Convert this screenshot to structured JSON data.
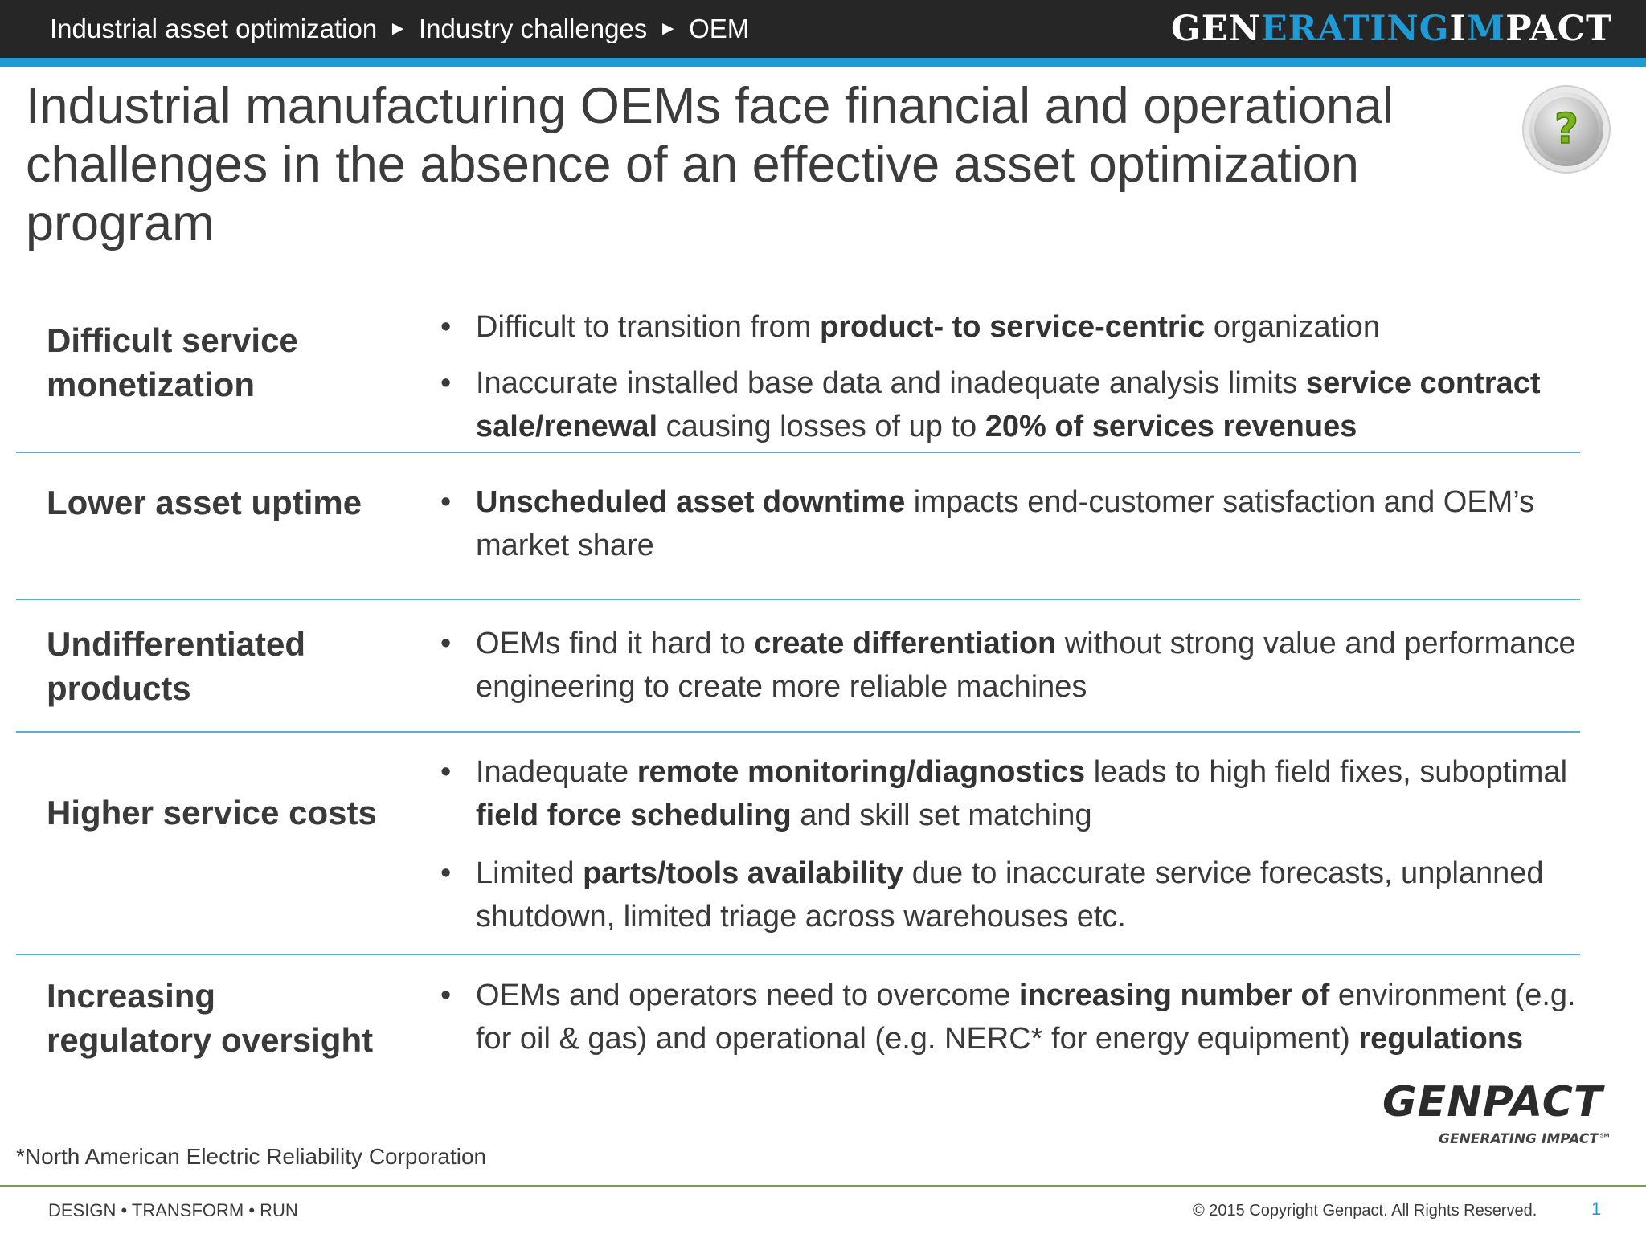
{
  "header": {
    "breadcrumb": [
      "Industrial asset optimization",
      "Industry challenges",
      "OEM"
    ],
    "separator": "►",
    "brand_white_1": "GEN",
    "brand_blue_1": "ERATING ",
    "brand_white_2": "I",
    "brand_blue_2": "M",
    "brand_white_3": "PACT",
    "brand_highlight_color": "#1e9ad6"
  },
  "title": "Industrial manufacturing OEMs face financial and operational challenges in the absence of an effective asset optimization program",
  "help_icon": "question-mark-icon",
  "rows": [
    {
      "label": "Difficult service monetization",
      "bullets": [
        [
          {
            "t": "Difficult to transition from ",
            "b": false
          },
          {
            "t": "product- to service-centric",
            "b": true
          },
          {
            "t": " organization",
            "b": false
          }
        ],
        [
          {
            "t": "Inaccurate installed base data and inadequate analysis limits ",
            "b": false
          },
          {
            "t": "service contract sale/renewal",
            "b": true
          },
          {
            "t": " causing losses of up to ",
            "b": false
          },
          {
            "t": "20% of services revenues",
            "b": true
          }
        ]
      ]
    },
    {
      "label": "Lower asset uptime",
      "bullets": [
        [
          {
            "t": "Unscheduled asset downtime",
            "b": true
          },
          {
            "t": " impacts end-customer satisfaction and OEM’s market share",
            "b": false
          }
        ]
      ]
    },
    {
      "label": "Undifferentiated products",
      "bullets": [
        [
          {
            "t": "OEMs find it hard to ",
            "b": false
          },
          {
            "t": "create differentiation",
            "b": true
          },
          {
            "t": " without strong value and performance engineering to create more reliable machines",
            "b": false
          }
        ]
      ]
    },
    {
      "label": "Higher service costs",
      "bullets": [
        [
          {
            "t": "Inadequate ",
            "b": false
          },
          {
            "t": "remote monitoring/diagnostics",
            "b": true
          },
          {
            "t": " leads to high field fixes, suboptimal ",
            "b": false
          },
          {
            "t": "field force scheduling",
            "b": true
          },
          {
            "t": " and skill set matching",
            "b": false
          }
        ],
        [
          {
            "t": "Limited ",
            "b": false
          },
          {
            "t": "parts/tools availability",
            "b": true
          },
          {
            "t": " due to inaccurate service forecasts, unplanned shutdown, limited triage across warehouses etc.",
            "b": false
          }
        ]
      ]
    },
    {
      "label": "Increasing regulatory oversight",
      "bullets": [
        [
          {
            "t": "OEMs and operators need to overcome ",
            "b": false
          },
          {
            "t": "increasing number of",
            "b": true
          },
          {
            "t": " environment (e.g. for oil & gas) and operational (e.g. NERC* for energy equipment) ",
            "b": false
          },
          {
            "t": "regulations",
            "b": true
          }
        ]
      ]
    }
  ],
  "bullet_glyph": "•",
  "footnote": "*North American Electric Reliability Corporation",
  "logo": {
    "word": "GENPACT",
    "tagline": "GENERATING IMPACT℠"
  },
  "footer": {
    "left": "DESIGN • TRANSFORM • RUN",
    "copyright": "© 2015 Copyright Genpact. All Rights Reserved.",
    "page_number": "1"
  }
}
